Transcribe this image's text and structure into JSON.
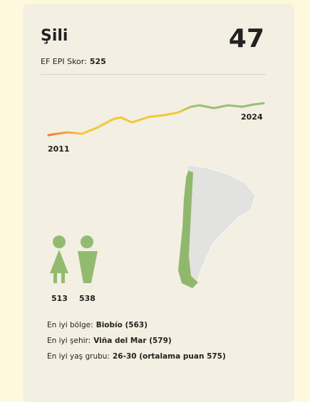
{
  "header": {
    "country": "Şili",
    "rank": "47",
    "score_label": "EF EPI Skor:",
    "score": "525"
  },
  "trend": {
    "start_year": "2011",
    "end_year": "2024"
  },
  "gender": {
    "female": "513",
    "male": "538"
  },
  "facts": [
    {
      "label": "En iyi bölge:",
      "value": "Biobío (563)"
    },
    {
      "label": "En iyi şehir:",
      "value": "Viña del Mar (579)"
    },
    {
      "label": "En iyi yaş grubu:",
      "value": "26-30 (ortalama puan 575)"
    }
  ]
}
